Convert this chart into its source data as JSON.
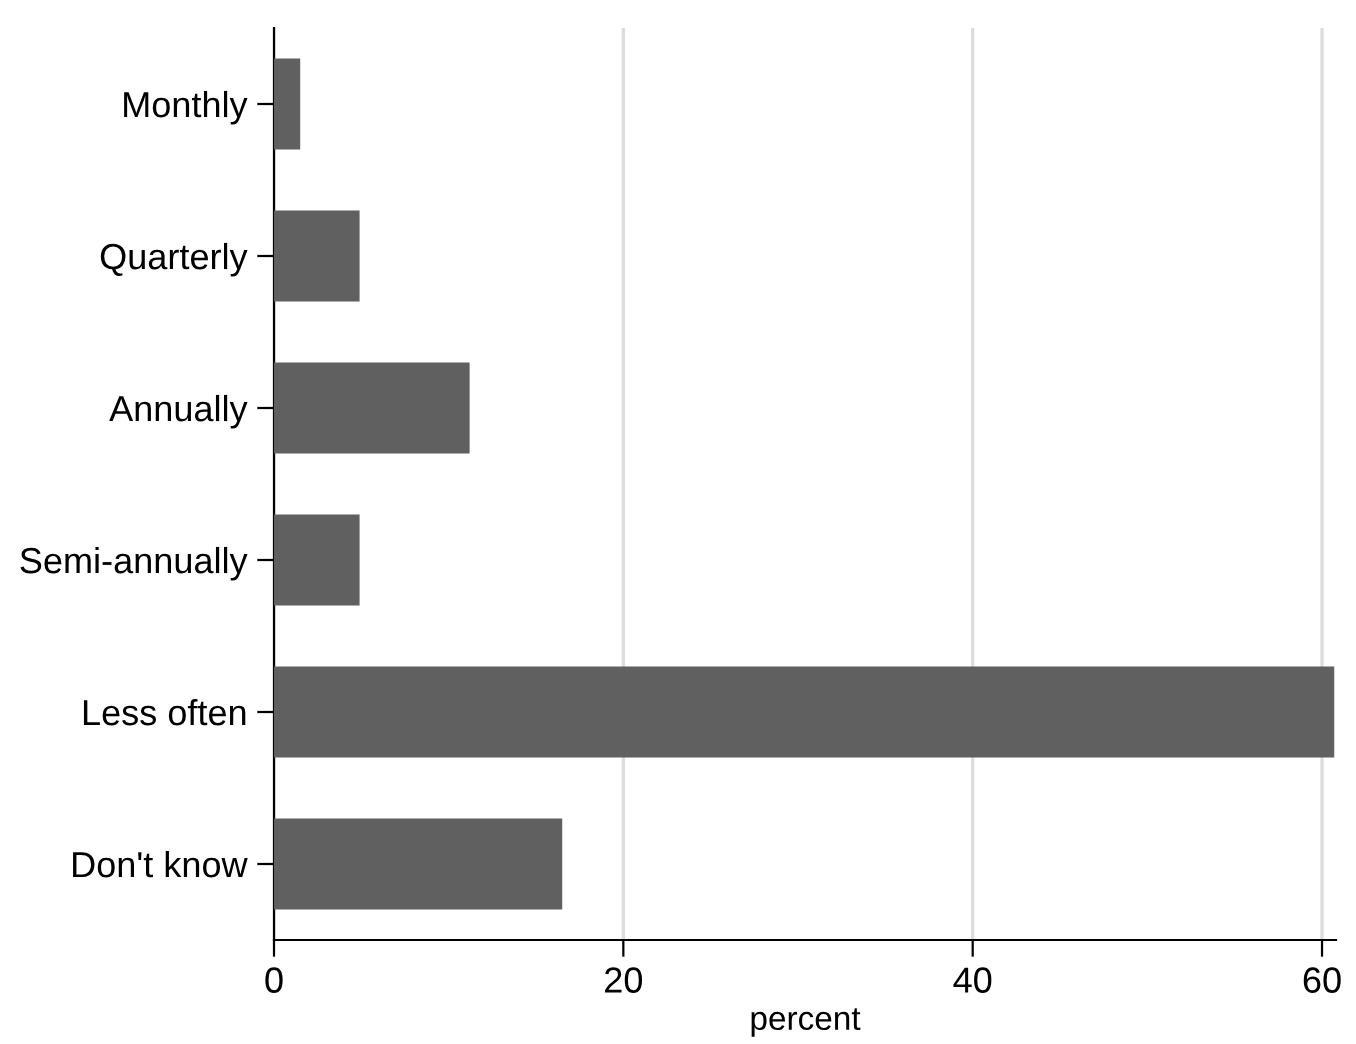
{
  "chart_data": {
    "type": "bar",
    "orientation": "horizontal",
    "xlabel": "percent",
    "categories": [
      "Monthly",
      "Quarterly",
      "Annually",
      "Semi-annually",
      "Less often",
      "Don't know"
    ],
    "values": [
      1.5,
      4.9,
      11.2,
      4.9,
      60.7,
      16.5
    ],
    "color": "#606060",
    "xlim": [
      0,
      60.8
    ],
    "xticks": [
      0,
      20,
      40,
      60
    ],
    "grid": "x"
  }
}
